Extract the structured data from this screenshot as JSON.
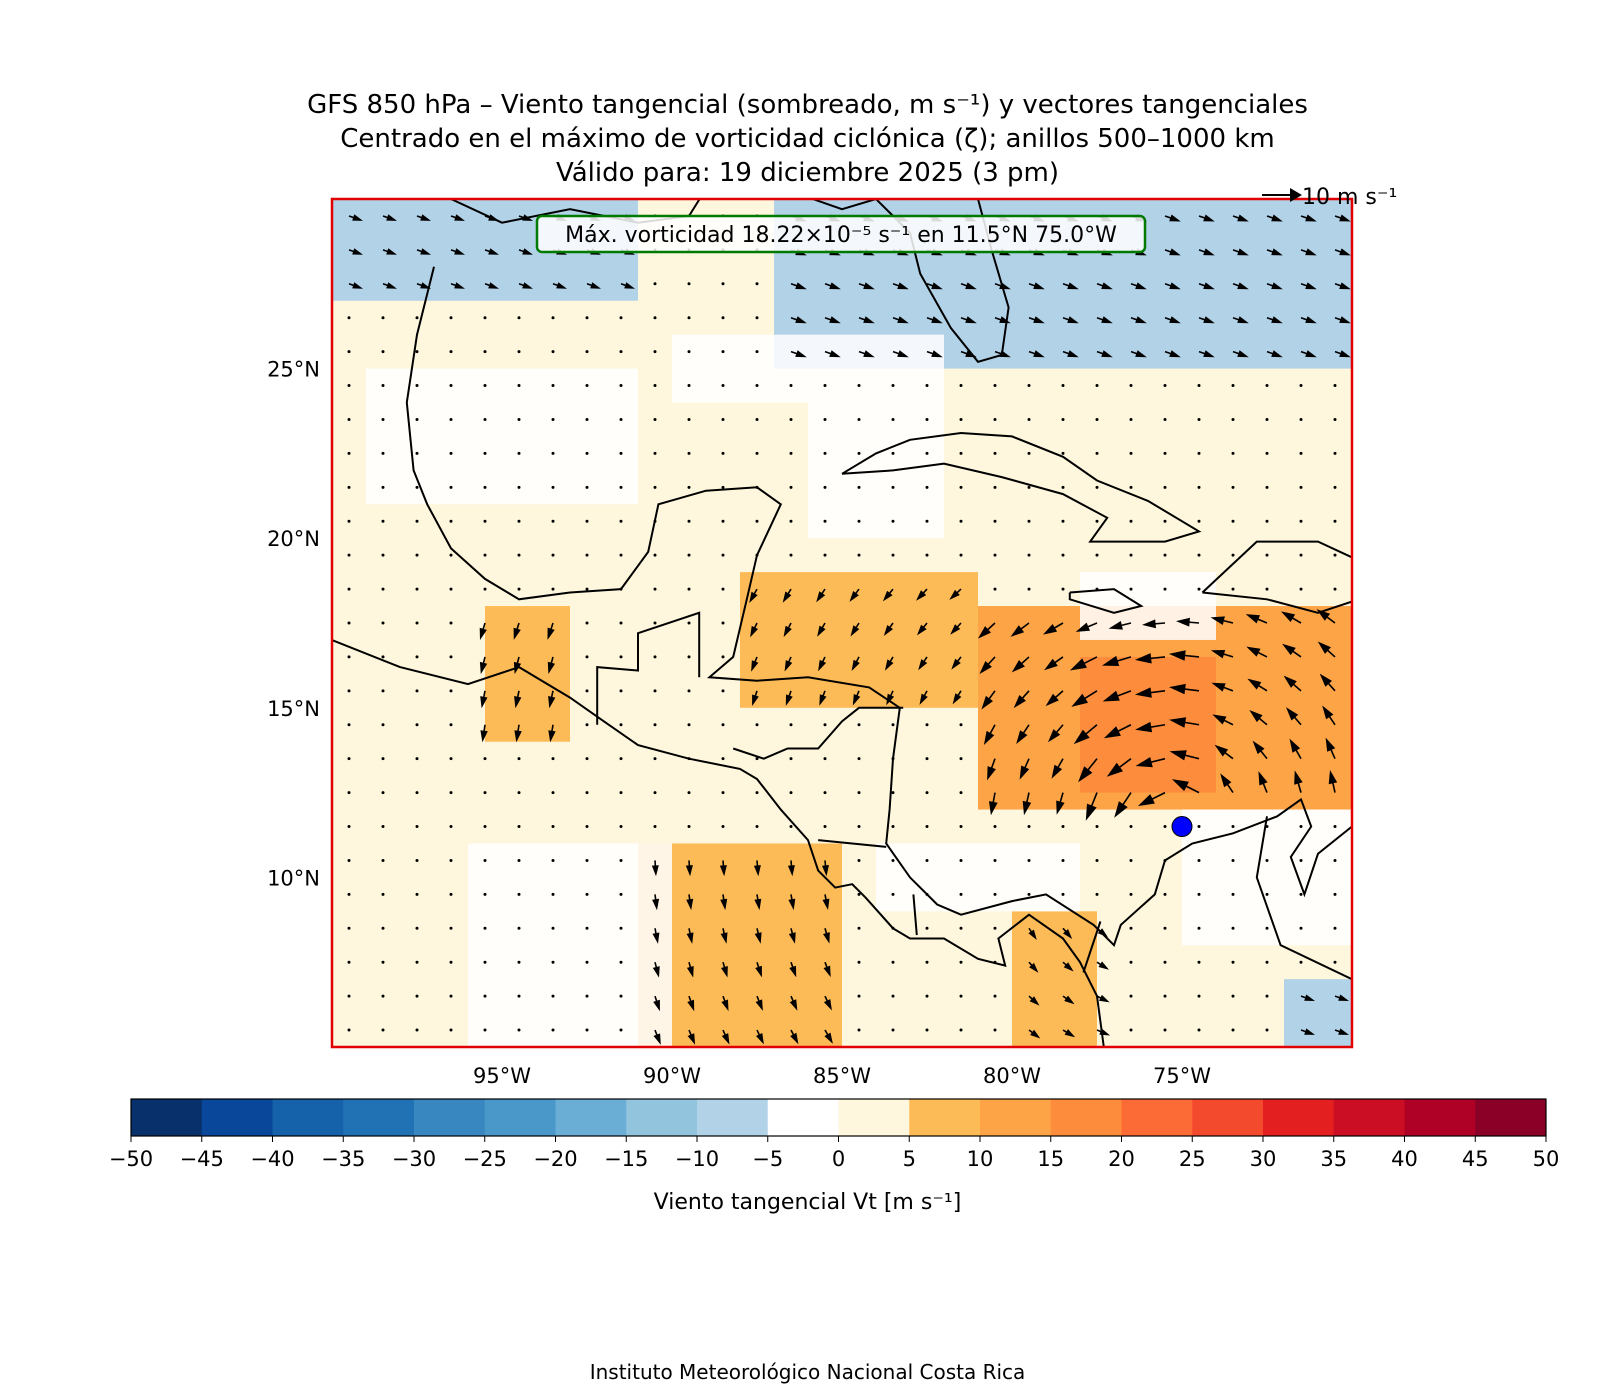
{
  "title": {
    "line1": "GFS 850 hPa – Viento tangencial (sombreado, m s⁻¹) y vectores tangenciales",
    "line2": "Centrado en el máximo de vorticidad ciclónica (ζ); anillos 500–1000 km",
    "line3": "Válido para: 19 diciembre 2025 (3 pm)"
  },
  "reference_vector": {
    "label": "10 m s⁻¹",
    "speed": 10
  },
  "annotation": "Máx. vorticidad 18.22×10⁻⁵ s⁻¹ en 11.5°N 75.0°W",
  "center_marker": {
    "lat": 11.5,
    "lon": -75.0,
    "color": "#0000ff"
  },
  "map": {
    "lon_range": [
      -100,
      -70
    ],
    "lat_range": [
      5,
      30
    ],
    "lon_ticks": [
      {
        "value": -95,
        "label": "95°W"
      },
      {
        "value": -90,
        "label": "90°W"
      },
      {
        "value": -85,
        "label": "85°W"
      },
      {
        "value": -80,
        "label": "80°W"
      },
      {
        "value": -75,
        "label": "75°W"
      }
    ],
    "lat_ticks": [
      {
        "value": 10,
        "label": "10°N"
      },
      {
        "value": 15,
        "label": "15°N"
      },
      {
        "value": 20,
        "label": "20°N"
      },
      {
        "value": 25,
        "label": "25°N"
      }
    ],
    "frame_color": "#e00000"
  },
  "colorbar": {
    "label": "Viento tangencial Vt [m s⁻¹]",
    "levels": [
      -50,
      -45,
      -40,
      -35,
      -30,
      -25,
      -20,
      -15,
      -10,
      -5,
      0,
      5,
      10,
      15,
      20,
      25,
      30,
      35,
      40,
      45,
      50
    ],
    "tick_labels": [
      "−50",
      "−45",
      "−40",
      "−35",
      "−30",
      "−25",
      "−20",
      "−15",
      "−10",
      "−5",
      "0",
      "5",
      "10",
      "15",
      "20",
      "25",
      "30",
      "35",
      "40",
      "45",
      "50"
    ],
    "colors": [
      "#08306b",
      "#08479a",
      "#1562ab",
      "#2171b5",
      "#3887c1",
      "#4a98c9",
      "#6aaed6",
      "#92c4de",
      "#b2d2e8",
      "#ffffff",
      "#fef7dd",
      "#fdbb57",
      "#fda447",
      "#fd8d3c",
      "#fc6b35",
      "#f34a2e",
      "#e31f1f",
      "#cb0e24",
      "#af0026",
      "#8a0026"
    ]
  },
  "chart_data": {
    "type": "heatmap",
    "title": "GFS 850 hPa – Viento tangencial (sombreado, m s⁻¹) y vectores tangenciales",
    "variable": "Viento tangencial Vt (m s⁻¹)",
    "shading_regions": [
      {
        "name": "negative-gulf-nw",
        "lon": [
          -100,
          -91
        ],
        "lat": [
          27,
          30
        ],
        "vt": -7
      },
      {
        "name": "negative-florida-atlantic",
        "lon": [
          -87,
          -70
        ],
        "lat": [
          25,
          30
        ],
        "vt": -8
      },
      {
        "name": "positive-caribbean",
        "lon": [
          -81,
          -70
        ],
        "lat": [
          12,
          18
        ],
        "vt": 12
      },
      {
        "name": "positive-core",
        "lon": [
          -78,
          -74
        ],
        "lat": [
          12.5,
          16.5
        ],
        "vt": 16
      },
      {
        "name": "positive-yucatan-honduras",
        "lon": [
          -88,
          -81
        ],
        "lat": [
          15,
          19
        ],
        "vt": 8
      },
      {
        "name": "positive-pacific-gt",
        "lon": [
          -95.5,
          -93
        ],
        "lat": [
          14,
          18
        ],
        "vt": 9
      },
      {
        "name": "positive-pacific-south",
        "lon": [
          -91,
          -85
        ],
        "lat": [
          5,
          11
        ],
        "vt": 8
      },
      {
        "name": "positive-panama",
        "lon": [
          -80,
          -77.5
        ],
        "lat": [
          5,
          9
        ],
        "vt": 7
      },
      {
        "name": "negative-colombia-venezuela",
        "lon": [
          -72,
          -70
        ],
        "lat": [
          5,
          7
        ],
        "vt": -7
      }
    ],
    "vectors_note": "Tangential wind vectors; cyclonic circulation centered at 11.5°N 75.0°W"
  },
  "footer": "Instituto Meteorológico Nacional Costa Rica"
}
